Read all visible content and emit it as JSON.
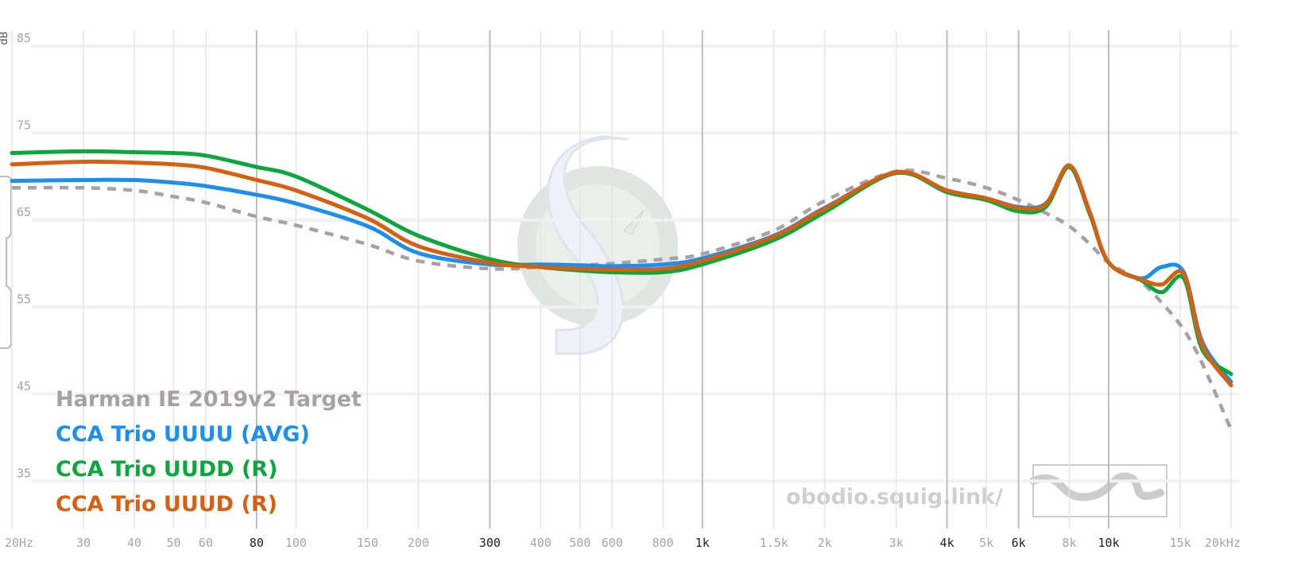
{
  "chart_data": {
    "type": "line",
    "y_label": "dB",
    "x_scale": "log",
    "xlim": [
      20,
      20000
    ],
    "ylim": [
      30,
      87
    ],
    "xticks": [
      {
        "value": 20,
        "label": "20Hz"
      },
      30,
      40,
      50,
      60,
      80,
      100,
      150,
      200,
      300,
      400,
      500,
      600,
      800,
      {
        "value": 1000,
        "label": "1k"
      },
      {
        "value": 1500,
        "label": "1.5k"
      },
      {
        "value": 2000,
        "label": "2k"
      },
      {
        "value": 3000,
        "label": "3k"
      },
      {
        "value": 4000,
        "label": "4k"
      },
      {
        "value": 5000,
        "label": "5k"
      },
      {
        "value": 6000,
        "label": "6k"
      },
      {
        "value": 8000,
        "label": "8k"
      },
      {
        "value": 10000,
        "label": "10k"
      },
      {
        "value": 15000,
        "label": "15k"
      },
      {
        "value": 20000,
        "label": "20kHz"
      }
    ],
    "major_xticks": [
      80,
      300,
      1000,
      4000,
      6000,
      10000
    ],
    "yticks": [
      35,
      45,
      55,
      65,
      75,
      85
    ],
    "grid": true,
    "legend_position": "bottom-left",
    "watermark": "obodio.squig.link/",
    "x": [
      20,
      30,
      40,
      50,
      60,
      80,
      100,
      150,
      200,
      300,
      400,
      500,
      600,
      800,
      1000,
      1500,
      2000,
      3000,
      4000,
      5000,
      6000,
      7000,
      8000,
      9000,
      10000,
      12000,
      13500,
      15300,
      17000,
      20000
    ],
    "series": [
      {
        "name": "Harman IE 2019v2 Target",
        "color": "#aaa0a3",
        "dashed": true,
        "values": [
          68.7,
          68.7,
          68.4,
          67.7,
          67.0,
          65.4,
          64.4,
          62.2,
          60.3,
          59.4,
          59.6,
          59.8,
          60.0,
          60.5,
          61.1,
          63.8,
          67.2,
          70.6,
          69.8,
          68.7,
          67.3,
          65.8,
          64.3,
          62.2,
          60.1,
          57.9,
          55.5,
          52.4,
          48.5,
          40.9
        ]
      },
      {
        "name": "CCA Trio UUUU (AVG)",
        "color": "#1a8ff0",
        "dashed": false,
        "values": [
          69.5,
          69.6,
          69.6,
          69.3,
          68.9,
          67.9,
          66.9,
          64.3,
          61.2,
          59.9,
          59.9,
          59.8,
          59.7,
          59.9,
          60.6,
          63.2,
          66.4,
          70.4,
          68.4,
          67.5,
          66.5,
          66.9,
          71.1,
          65.6,
          60.1,
          58.3,
          59.6,
          59.0,
          51.0,
          46.4
        ]
      },
      {
        "name": "CCA Trio UUDD (R)",
        "color": "#0aa83c",
        "dashed": false,
        "values": [
          72.7,
          72.9,
          72.8,
          72.7,
          72.4,
          71.1,
          70.0,
          66.2,
          63.2,
          60.5,
          59.6,
          59.2,
          59.0,
          59.0,
          59.9,
          62.7,
          65.9,
          70.4,
          68.2,
          67.3,
          66.0,
          66.5,
          71.1,
          65.6,
          60.1,
          58.1,
          56.7,
          58.3,
          50.1,
          47.3
        ]
      },
      {
        "name": "CCA Trio UUUD (R)",
        "color": "#d95f0e",
        "dashed": false,
        "values": [
          71.4,
          71.7,
          71.6,
          71.4,
          71.0,
          69.6,
          68.4,
          65.2,
          62.0,
          60.1,
          59.6,
          59.4,
          59.3,
          59.4,
          60.3,
          63.1,
          66.3,
          70.5,
          68.4,
          67.5,
          66.4,
          66.8,
          71.3,
          65.8,
          60.1,
          58.2,
          57.6,
          58.8,
          50.6,
          46.0
        ]
      }
    ]
  }
}
